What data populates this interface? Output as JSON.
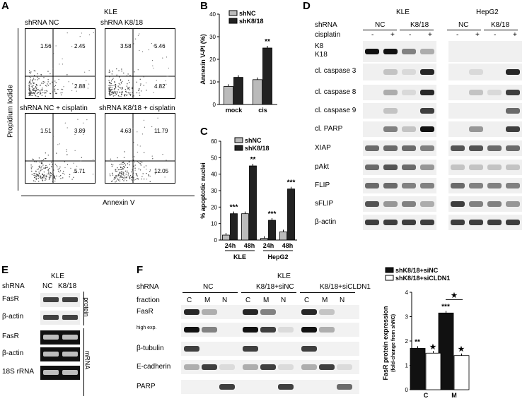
{
  "panelA": {
    "letter": "A",
    "title": "KLE",
    "ylabel": "Propidium Iodide",
    "xlabel": "Annexin V",
    "plots": [
      {
        "label": "shRNA NC",
        "q": [
          "1.56",
          "2.45",
          "2.88"
        ]
      },
      {
        "label": "shRNA K8/18",
        "q": [
          "3.58",
          "5.46",
          "4.82"
        ]
      },
      {
        "label": "shRNA NC + cisplatin",
        "q": [
          "1.51",
          "3.89",
          "5.71"
        ]
      },
      {
        "label": "shRNA K8/18 + cisplatin",
        "q": [
          "4.63",
          "11.79",
          "12.05"
        ]
      }
    ]
  },
  "panelB": {
    "letter": "B",
    "chart_data": {
      "type": "bar",
      "ylabel": "Annexin V-PI (%)",
      "categories": [
        "mock",
        "cis"
      ],
      "series": [
        {
          "name": "shNC",
          "values": [
            8,
            11
          ]
        },
        {
          "name": "shK8/18",
          "values": [
            12,
            25
          ]
        }
      ],
      "ylim": [
        0,
        40
      ],
      "yticks": [
        "0",
        "10",
        "20",
        "30",
        "40"
      ],
      "annotations": [
        "**"
      ]
    }
  },
  "panelC": {
    "letter": "C",
    "chart_data": {
      "type": "bar",
      "ylabel": "% apoptotic nuclei",
      "categories": [
        "24h",
        "48h",
        "24h",
        "48h"
      ],
      "groups": [
        "KLE",
        "HepG2"
      ],
      "series": [
        {
          "name": "shNC",
          "values": [
            3,
            16,
            1,
            5
          ]
        },
        {
          "name": "shK8/18",
          "values": [
            16,
            45,
            12,
            31
          ]
        }
      ],
      "ylim": [
        0,
        60
      ],
      "yticks": [
        "0",
        "10",
        "20",
        "30",
        "40",
        "50",
        "60"
      ],
      "annotations": [
        "***",
        "**",
        "***",
        "***"
      ]
    }
  },
  "panelD": {
    "letter": "D",
    "cell_lines": [
      "KLE",
      "HepG2"
    ],
    "shrna_label": "shRNA",
    "cisplatin_label": "cisplatin",
    "groups": [
      "NC",
      "K8/18",
      "NC",
      "K8/18"
    ],
    "signs": [
      "-",
      "+",
      "-",
      "+",
      "-",
      "+",
      "-",
      "+"
    ],
    "rows": [
      "K8\nK18",
      "cl. caspase 3",
      "cl. caspase 8",
      "cl. caspase 9",
      "cl. PARP",
      "XIAP",
      "pAkt",
      "FLIP",
      "sFLIP",
      "β-actin"
    ]
  },
  "panelE": {
    "letter": "E",
    "title": "KLE",
    "shrna_label": "shRNA",
    "lanes": [
      "NC",
      "K8/18"
    ],
    "rows": [
      "FasR",
      "β-actin",
      "FasR",
      "β-actin",
      "18S rRNA"
    ],
    "sections": [
      "protein",
      "mRNA"
    ]
  },
  "panelF": {
    "letter": "F",
    "title": "KLE",
    "shrna_label": "shRNA",
    "fraction_label": "fraction",
    "groups": [
      "NC",
      "K8/18+siNC",
      "K8/18+siCLDN1"
    ],
    "fractions": [
      "C",
      "M",
      "N",
      "C",
      "M",
      "N",
      "C",
      "M",
      "N"
    ],
    "rows": [
      "FasR",
      "high exp.",
      "β-tubulin",
      "E-cadherin",
      "PARP"
    ],
    "chart_data": {
      "type": "bar",
      "ylabel": "FasR protein expression",
      "ylabel2": "(fold-change from shNC)",
      "categories": [
        "C",
        "M"
      ],
      "series": [
        {
          "name": "shK8/18+siNC",
          "values": [
            1.7,
            3.15
          ]
        },
        {
          "name": "shK8/18+siCLDN1",
          "values": [
            1.5,
            1.4
          ]
        }
      ],
      "ylim": [
        0,
        4
      ],
      "yticks": [
        "0",
        "1",
        "2",
        "3",
        "4"
      ],
      "annotations": [
        "**",
        "★",
        "***",
        "★",
        "★"
      ]
    }
  }
}
